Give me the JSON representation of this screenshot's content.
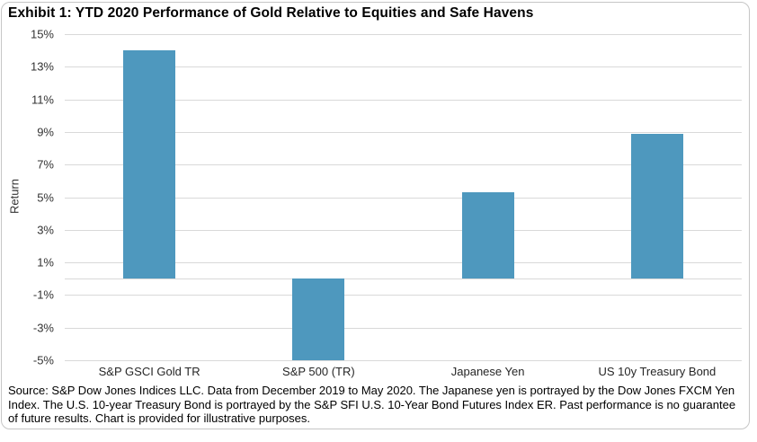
{
  "title": "Exhibit 1: YTD 2020 Performance of Gold Relative to Equities and Safe Havens",
  "source_note": "Source: S&P Dow Jones Indices LLC. Data from December 2019 to May 2020. The Japanese yen is portrayed by the Dow Jones FXCM Yen Index. The U.S. 10-year Treasury Bond is portrayed by the S&P SFI U.S. 10-Year Bond Futures Index ER. Past performance is no guarantee of future results. Chart is provided for illustrative purposes.",
  "chart_data": {
    "type": "bar",
    "title": "Exhibit 1: YTD 2020 Performance of Gold Relative to Equities and Safe Havens",
    "categories": [
      "S&P GSCI Gold TR",
      "S&P 500 (TR)",
      "Japanese Yen",
      "US 10y Treasury Bond"
    ],
    "values": [
      14.0,
      -5.0,
      5.3,
      8.9
    ],
    "xlabel": "",
    "ylabel": "Return",
    "ylim": [
      -5,
      15
    ],
    "ytick_step": 2,
    "ytick_labels": [
      "15%",
      "13%",
      "11%",
      "9%",
      "7%",
      "5%",
      "3%",
      "1%",
      "-1%",
      "-3%",
      "-5%"
    ],
    "grid": true,
    "zero_line": true,
    "legend": "none",
    "bar_color": "#4e98be",
    "gridline_color": "#d9d9d9",
    "border_color": "#c6c6c6"
  }
}
